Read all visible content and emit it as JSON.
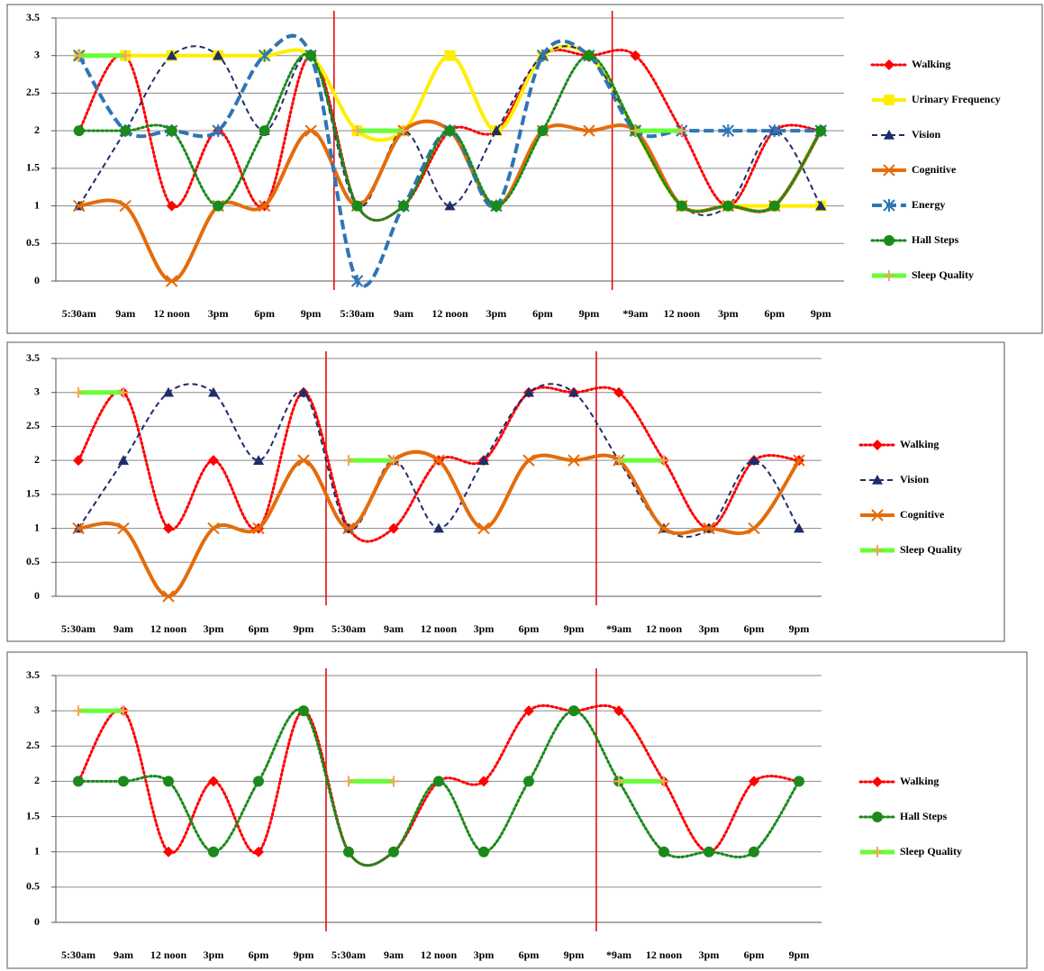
{
  "chart_data": [
    {
      "type": "line",
      "categories": [
        "5:30am",
        "9am",
        "12 noon",
        "3pm",
        "6pm",
        "9pm",
        "5:30am",
        "9am",
        "12 noon",
        "3pm",
        "6pm",
        "9pm",
        "*9am",
        "12 noon",
        "3pm",
        "6pm",
        "9pm"
      ],
      "ylim": [
        0,
        3.5
      ],
      "yticks": [
        0,
        0.5,
        1,
        1.5,
        2,
        2.5,
        3,
        3.5
      ],
      "grid": true,
      "series": [
        {
          "name": "Walking",
          "color": "#ff0000",
          "dash": "dotted",
          "marker": "diamond",
          "values": [
            2,
            3,
            1,
            2,
            1,
            3,
            1,
            1,
            2,
            2,
            3,
            3,
            3,
            2,
            1,
            2,
            2
          ]
        },
        {
          "name": "Urinary Frequency",
          "color": "#ffee00",
          "dash": "solid",
          "marker": "square",
          "values": [
            3,
            3,
            3,
            3,
            3,
            3,
            2,
            2,
            3,
            2,
            3,
            3,
            2,
            1,
            1,
            1,
            1
          ]
        },
        {
          "name": "Vision",
          "color": "#1f2d6b",
          "dash": "dashed",
          "marker": "triangle",
          "values": [
            1,
            2,
            3,
            3,
            2,
            3,
            1,
            2,
            1,
            2,
            3,
            3,
            2,
            1,
            1,
            2,
            1
          ]
        },
        {
          "name": "Cognitive",
          "color": "#e46c0a",
          "dash": "solid",
          "marker": "cross",
          "values": [
            1,
            1,
            0,
            1,
            1,
            2,
            1,
            2,
            2,
            1,
            2,
            2,
            2,
            1,
            1,
            1,
            2
          ]
        },
        {
          "name": "Energy",
          "color": "#2e75b6",
          "dash": "longdash",
          "marker": "star",
          "values": [
            3,
            2,
            2,
            2,
            3,
            3,
            0,
            1,
            2,
            1,
            3,
            3,
            2,
            2,
            2,
            2,
            2
          ]
        },
        {
          "name": "Hall Steps",
          "color": "#1a8a1a",
          "dash": "dotted",
          "marker": "circle",
          "values": [
            2,
            2,
            2,
            1,
            2,
            3,
            1,
            1,
            2,
            1,
            2,
            3,
            2,
            1,
            1,
            1,
            2
          ]
        },
        {
          "name": "Sleep Quality",
          "color": "#66ff33",
          "dash": "solid",
          "marker": "plus",
          "values": [
            3,
            3,
            null,
            null,
            null,
            null,
            2,
            2,
            null,
            null,
            null,
            null,
            2,
            2,
            null,
            null,
            null
          ]
        }
      ]
    },
    {
      "type": "line",
      "categories": [
        "5:30am",
        "9am",
        "12 noon",
        "3pm",
        "6pm",
        "9pm",
        "5:30am",
        "9am",
        "12 noon",
        "3pm",
        "6pm",
        "9pm",
        "*9am",
        "12 noon",
        "3pm",
        "6pm",
        "9pm"
      ],
      "ylim": [
        0,
        3.5
      ],
      "yticks": [
        0,
        0.5,
        1,
        1.5,
        2,
        2.5,
        3,
        3.5
      ],
      "grid": true,
      "series": [
        {
          "name": "Walking",
          "color": "#ff0000",
          "dash": "dotted",
          "marker": "diamond",
          "values": [
            2,
            3,
            1,
            2,
            1,
            3,
            1,
            1,
            2,
            2,
            3,
            3,
            3,
            2,
            1,
            2,
            2
          ]
        },
        {
          "name": "Vision",
          "color": "#1f2d6b",
          "dash": "dashed",
          "marker": "triangle",
          "values": [
            1,
            2,
            3,
            3,
            2,
            3,
            1,
            2,
            1,
            2,
            3,
            3,
            2,
            1,
            1,
            2,
            1
          ]
        },
        {
          "name": "Cognitive",
          "color": "#e46c0a",
          "dash": "solid",
          "marker": "cross",
          "values": [
            1,
            1,
            0,
            1,
            1,
            2,
            1,
            2,
            2,
            1,
            2,
            2,
            2,
            1,
            1,
            1,
            2
          ]
        },
        {
          "name": "Sleep Quality",
          "color": "#66ff33",
          "dash": "solid",
          "marker": "plus",
          "values": [
            3,
            3,
            null,
            null,
            null,
            null,
            2,
            2,
            null,
            null,
            null,
            null,
            2,
            2,
            null,
            null,
            null
          ]
        }
      ]
    },
    {
      "type": "line",
      "categories": [
        "5:30am",
        "9am",
        "12 noon",
        "3pm",
        "6pm",
        "9pm",
        "5:30am",
        "9am",
        "12 noon",
        "3pm",
        "6pm",
        "9pm",
        "*9am",
        "12 noon",
        "3pm",
        "6pm",
        "9pm"
      ],
      "ylim": [
        0,
        3.5
      ],
      "yticks": [
        0,
        0.5,
        1,
        1.5,
        2,
        2.5,
        3,
        3.5
      ],
      "grid": true,
      "series": [
        {
          "name": "Walking",
          "color": "#ff0000",
          "dash": "dotted",
          "marker": "diamond",
          "values": [
            2,
            3,
            1,
            2,
            1,
            3,
            1,
            1,
            2,
            2,
            3,
            3,
            3,
            2,
            1,
            2,
            2
          ]
        },
        {
          "name": "Hall Steps",
          "color": "#1a8a1a",
          "dash": "dotted",
          "marker": "circle",
          "values": [
            2,
            2,
            2,
            1,
            2,
            3,
            1,
            1,
            2,
            1,
            2,
            3,
            2,
            1,
            1,
            1,
            2
          ]
        },
        {
          "name": "Sleep Quality",
          "color": "#66ff33",
          "dash": "solid",
          "marker": "plus",
          "values": [
            3,
            3,
            null,
            null,
            null,
            null,
            2,
            2,
            null,
            null,
            null,
            null,
            2,
            2,
            null,
            null,
            null
          ]
        }
      ]
    }
  ]
}
